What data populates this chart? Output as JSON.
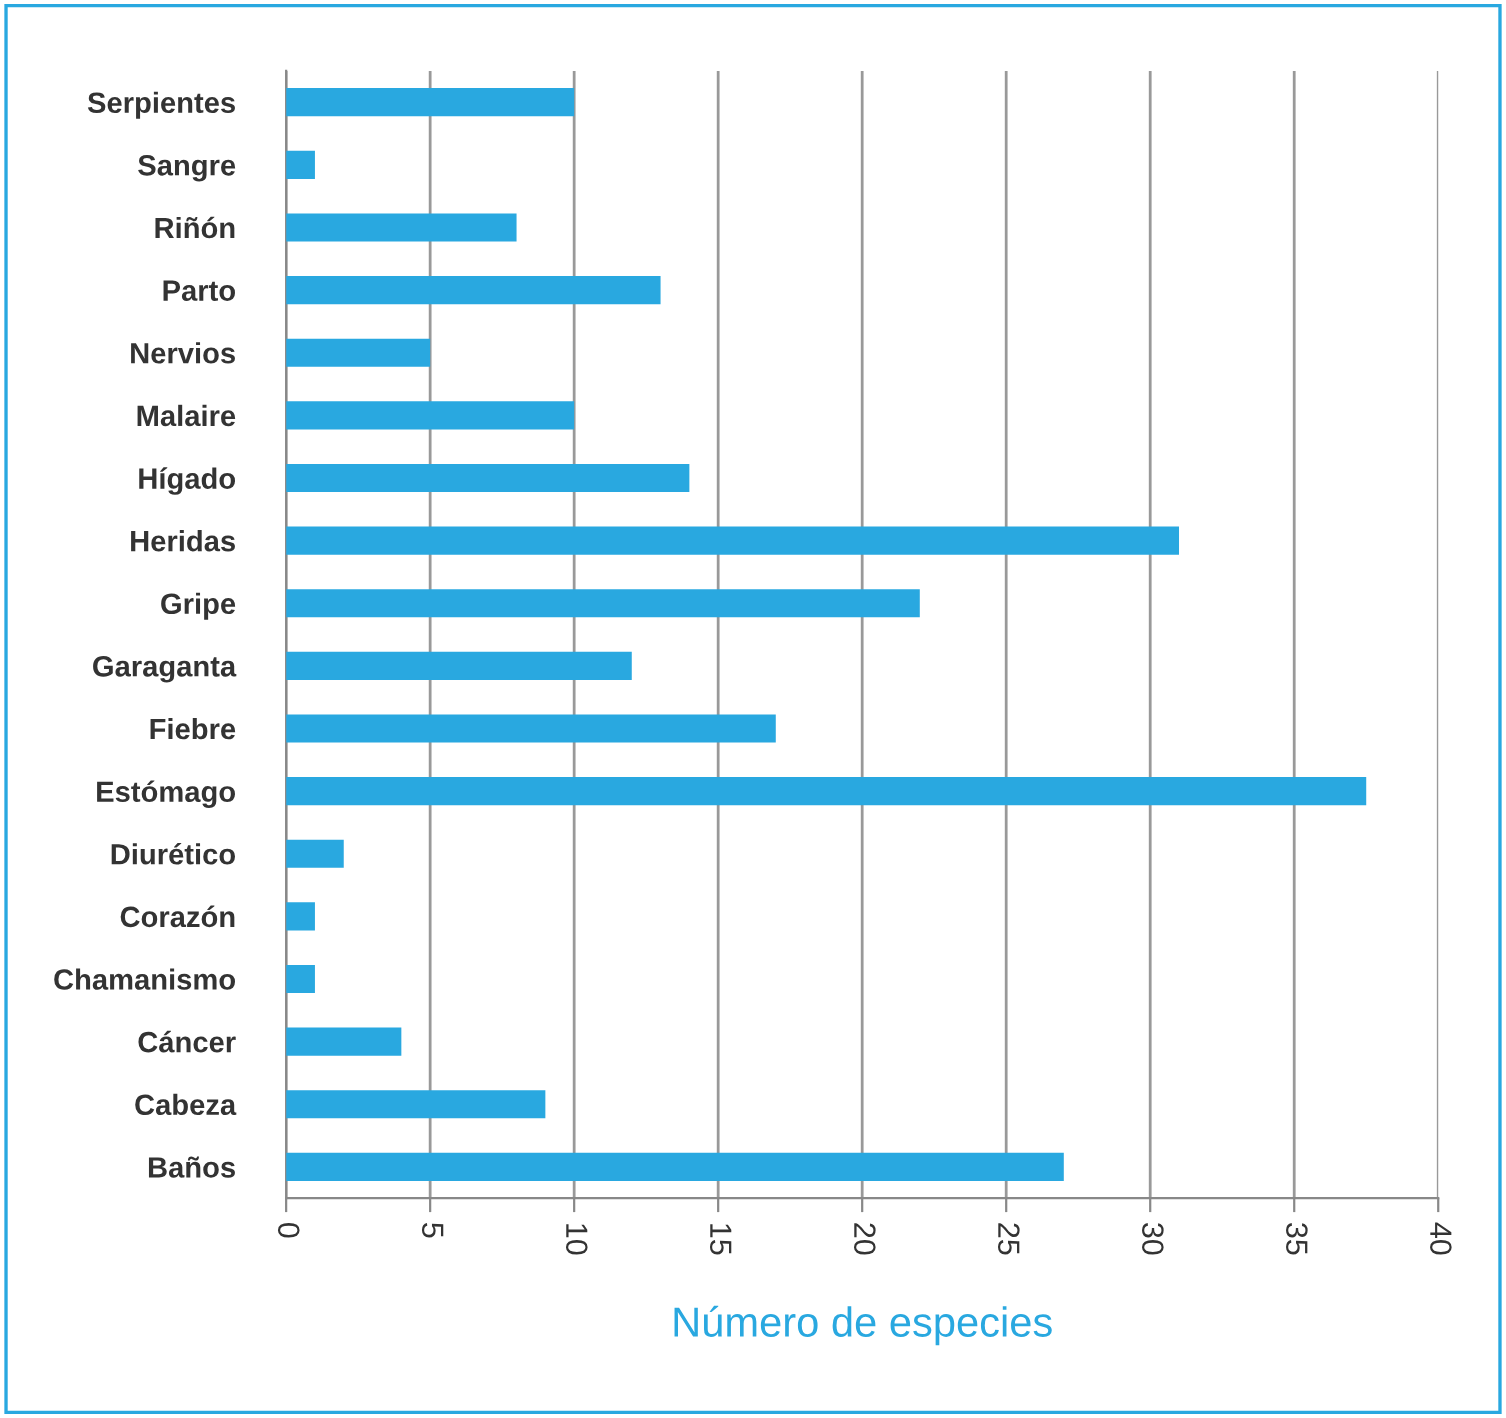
{
  "chart_data": {
    "type": "bar",
    "orientation": "horizontal",
    "categories": [
      "Serpientes",
      "Sangre",
      "Riñón",
      "Parto",
      "Nervios",
      "Malaire",
      "Hígado",
      "Heridas",
      "Gripe",
      "Garaganta",
      "Fiebre",
      "Estómago",
      "Diurético",
      "Corazón",
      "Chamanismo",
      "Cáncer",
      "Cabeza",
      "Baños"
    ],
    "values": [
      10,
      1,
      8,
      13,
      5,
      10,
      14,
      31,
      22,
      12,
      17,
      37.5,
      2,
      1,
      1,
      4,
      9,
      27
    ],
    "color": "#29a8e0",
    "xlabel": "Número de especies",
    "xlim": [
      0,
      40
    ],
    "xticks": [
      0,
      5,
      10,
      15,
      20,
      25,
      30,
      35,
      40
    ],
    "grid": "x"
  }
}
